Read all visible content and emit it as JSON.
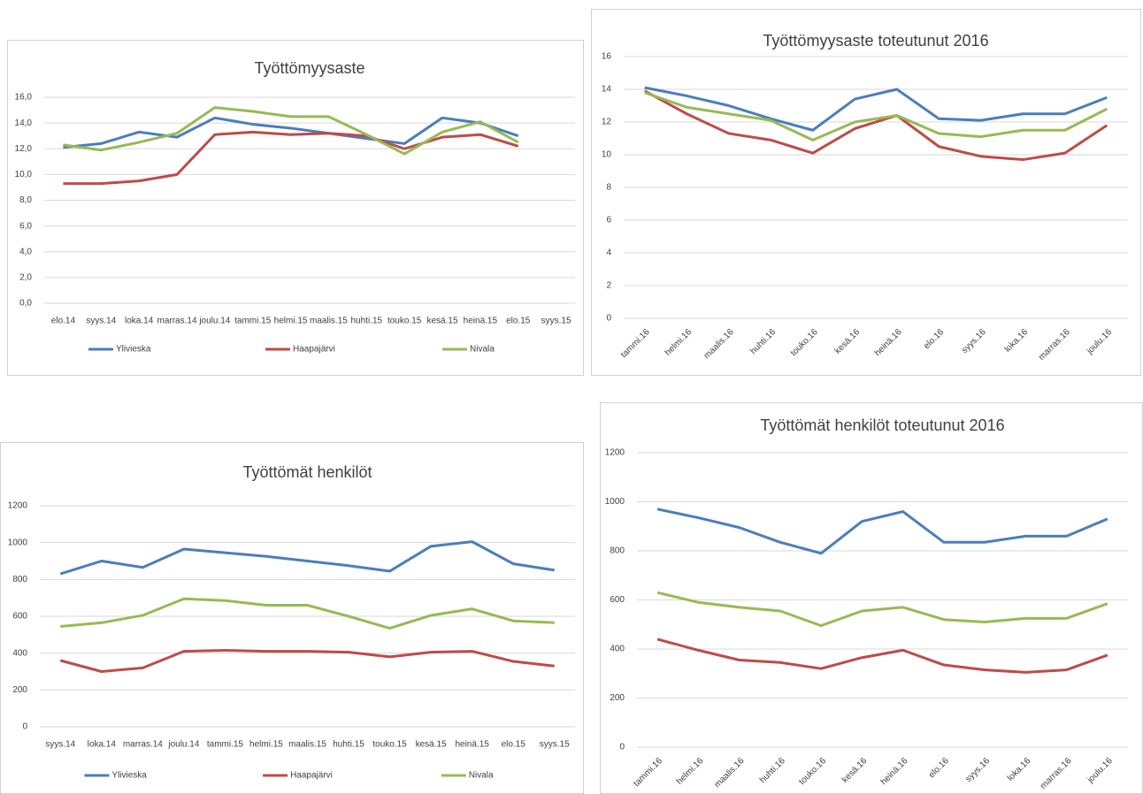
{
  "chart_data": [
    {
      "type": "line",
      "title": "Työttömyysaste",
      "categories": [
        "elo.14",
        "syys.14",
        "loka.14",
        "marras.14",
        "joulu.14",
        "tammi.15",
        "helmi.15",
        "maalis.15",
        "huhti.15",
        "touko.15",
        "kesä.15",
        "heinä.15",
        "elo.15",
        "syys.15"
      ],
      "series": [
        {
          "name": "Ylivieska",
          "color": "#4a7ebb",
          "values": [
            12.1,
            12.4,
            13.3,
            12.9,
            14.4,
            13.9,
            13.6,
            13.2,
            12.8,
            12.4,
            14.4,
            14.0,
            13.0,
            null
          ]
        },
        {
          "name": "Haapajärvi",
          "color": "#be4b48",
          "values": [
            9.3,
            9.3,
            9.5,
            10.0,
            13.1,
            13.3,
            13.1,
            13.2,
            13.0,
            12.0,
            12.9,
            13.1,
            12.2,
            null
          ]
        },
        {
          "name": "Nivala",
          "color": "#98b954",
          "values": [
            12.3,
            11.9,
            12.5,
            13.2,
            15.2,
            14.9,
            14.5,
            14.5,
            13.1,
            11.6,
            13.3,
            14.1,
            12.5,
            null
          ]
        }
      ],
      "ylim": [
        0,
        16
      ],
      "yticks": [
        {
          "value": 0,
          "label": "0,0"
        },
        {
          "value": 2,
          "label": "2,0"
        },
        {
          "value": 4,
          "label": "4,0"
        },
        {
          "value": 6,
          "label": "6,0"
        },
        {
          "value": 8,
          "label": "8,0"
        },
        {
          "value": 10,
          "label": "10,0"
        },
        {
          "value": 12,
          "label": "12,0"
        },
        {
          "value": 14,
          "label": "14,0"
        },
        {
          "value": 16,
          "label": "16,0"
        }
      ],
      "grid": true
    },
    {
      "type": "line",
      "title": "Työttömyysaste toteutunut 2016",
      "categories": [
        "tammi.16",
        "helmi.16",
        "maalis.16",
        "huhti.16",
        "touko.16",
        "kesä.16",
        "heinä.16",
        "elo.16",
        "syys.16",
        "loka.16",
        "marras.16",
        "joulu.16"
      ],
      "series": [
        {
          "color": "#4a7ebb",
          "values": [
            14.1,
            13.6,
            13.0,
            12.2,
            11.5,
            13.4,
            14.0,
            12.2,
            12.1,
            12.5,
            12.5,
            13.5
          ]
        },
        {
          "color": "#be4b48",
          "values": [
            13.9,
            12.5,
            11.3,
            10.9,
            10.1,
            11.6,
            12.4,
            10.5,
            9.9,
            9.7,
            10.1,
            11.8
          ]
        },
        {
          "color": "#98b954",
          "values": [
            13.8,
            12.9,
            12.5,
            12.1,
            10.9,
            12.0,
            12.4,
            11.3,
            11.1,
            11.5,
            11.5,
            12.8
          ]
        }
      ],
      "ylim": [
        0,
        16
      ],
      "yticks": [
        0,
        2,
        4,
        6,
        8,
        10,
        12,
        14,
        16
      ],
      "grid": true
    },
    {
      "type": "line",
      "title": "Työttömät henkilöt",
      "categories": [
        "syys.14",
        "loka.14",
        "marras.14",
        "joulu.14",
        "tammi.15",
        "helmi.15",
        "maalis.15",
        "huhti.15",
        "touko.15",
        "kesä.15",
        "heinä.15",
        "elo.15",
        "syys.15"
      ],
      "series": [
        {
          "name": "Ylivieska",
          "color": "#4a7ebb",
          "values": [
            830,
            900,
            865,
            965,
            945,
            925,
            900,
            875,
            845,
            980,
            1005,
            885,
            850
          ]
        },
        {
          "name": "Haapajärvi",
          "color": "#be4b48",
          "values": [
            360,
            300,
            320,
            410,
            415,
            410,
            410,
            405,
            380,
            405,
            410,
            355,
            330
          ]
        },
        {
          "name": "Nivala",
          "color": "#98b954",
          "values": [
            545,
            565,
            605,
            695,
            685,
            660,
            660,
            600,
            535,
            605,
            640,
            575,
            565
          ]
        }
      ],
      "ylim": [
        0,
        1200
      ],
      "yticks": [
        0,
        200,
        400,
        600,
        800,
        1000,
        1200
      ],
      "grid": true
    },
    {
      "type": "line",
      "title": "Työttömät henkilöt toteutunut 2016",
      "categories": [
        "tammi.16",
        "helmi.16",
        "maalis.16",
        "huhti.16",
        "touko.16",
        "kesä.16",
        "heinä.16",
        "elo.16",
        "syys.16",
        "loka.16",
        "marras.16",
        "joulu.16"
      ],
      "series": [
        {
          "color": "#4a7ebb",
          "values": [
            970,
            935,
            895,
            835,
            790,
            920,
            960,
            835,
            835,
            860,
            860,
            930
          ]
        },
        {
          "color": "#98b954",
          "values": [
            630,
            590,
            570,
            555,
            495,
            555,
            570,
            520,
            510,
            525,
            525,
            585
          ]
        },
        {
          "color": "#be4b48",
          "values": [
            440,
            395,
            355,
            345,
            320,
            365,
            395,
            335,
            315,
            305,
            315,
            375
          ]
        }
      ],
      "ylim": [
        0,
        1200
      ],
      "yticks": [
        0,
        200,
        400,
        600,
        800,
        1000,
        1200
      ],
      "grid": true
    }
  ]
}
